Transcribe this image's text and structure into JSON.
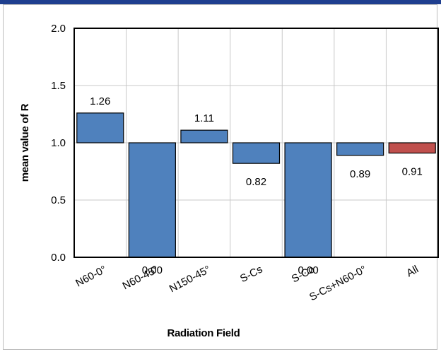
{
  "colors": {
    "top_bar": "#1f3f8f",
    "bar_blue": "#4f81bd",
    "bar_red": "#c0504d",
    "grid": "#c8c8c8"
  },
  "chart_data": {
    "type": "bar",
    "xlabel": "Radiation Field",
    "ylabel": "mean value of  R",
    "ylim": [
      0,
      2
    ],
    "baseline": 1.0,
    "yticks": [
      "0.0",
      "0.5",
      "1.0",
      "1.5",
      "2.0"
    ],
    "grid": true,
    "categories": [
      "N60-0°",
      "N60-45°",
      "N150-45°",
      "S-Cs",
      "S-Co",
      "S-Cs+N60-0°",
      "All"
    ],
    "values": [
      1.26,
      0.0,
      1.11,
      0.82,
      0.0,
      0.89,
      0.91
    ],
    "data_labels": [
      "1.26",
      "0.00",
      "1.11",
      "0.82",
      "0.00",
      "0.89",
      "0.91"
    ],
    "bar_colors": [
      "#4f81bd",
      "#4f81bd",
      "#4f81bd",
      "#4f81bd",
      "#4f81bd",
      "#4f81bd",
      "#c0504d"
    ]
  }
}
